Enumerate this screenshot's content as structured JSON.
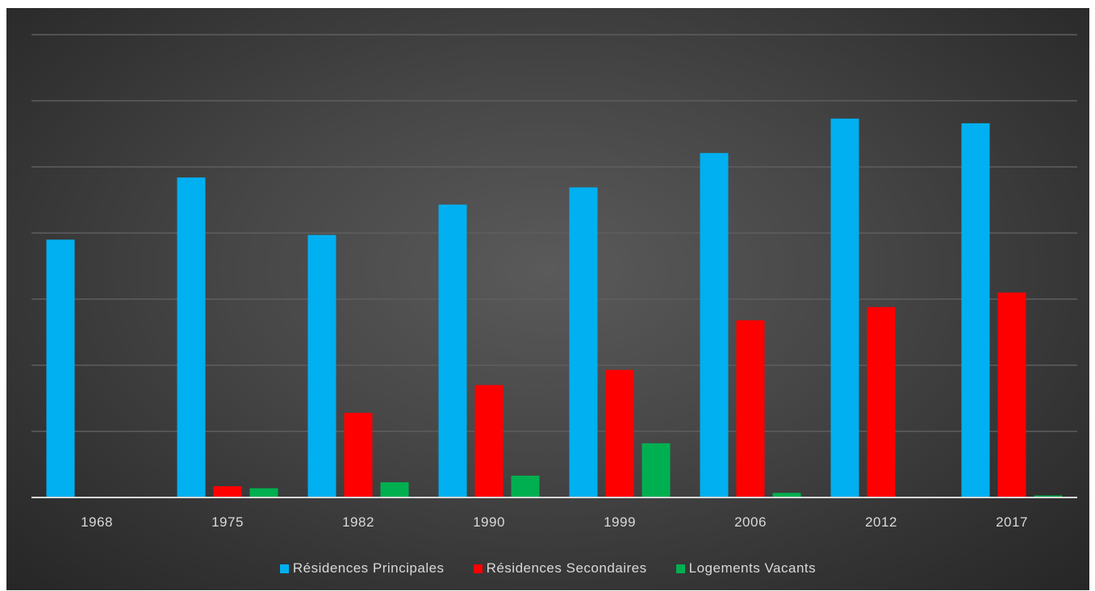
{
  "chart_data": {
    "type": "bar",
    "title": "",
    "xlabel": "",
    "ylabel": "",
    "categories": [
      "1968",
      "1975",
      "1982",
      "1990",
      "1999",
      "2006",
      "2012",
      "2017"
    ],
    "series": [
      {
        "name": "Résidences Principales",
        "color": "#00b0f0",
        "values": [
          390,
          484,
          397,
          443,
          469,
          521,
          573,
          566
        ]
      },
      {
        "name": "Résidences Secondaires",
        "color": "#ff0000",
        "values": [
          0,
          17,
          128,
          170,
          193,
          268,
          288,
          310
        ]
      },
      {
        "name": "Logements Vacants",
        "color": "#00b050",
        "values": [
          0,
          14,
          23,
          33,
          82,
          7,
          0,
          3
        ]
      }
    ],
    "ylim": [
      0,
      700
    ],
    "grid": true,
    "y_tick_labels_visible": false,
    "legend_position": "bottom",
    "background": "#474747",
    "axis_color": "#d9d9d9",
    "gridline_color": "#5e5e5e"
  }
}
